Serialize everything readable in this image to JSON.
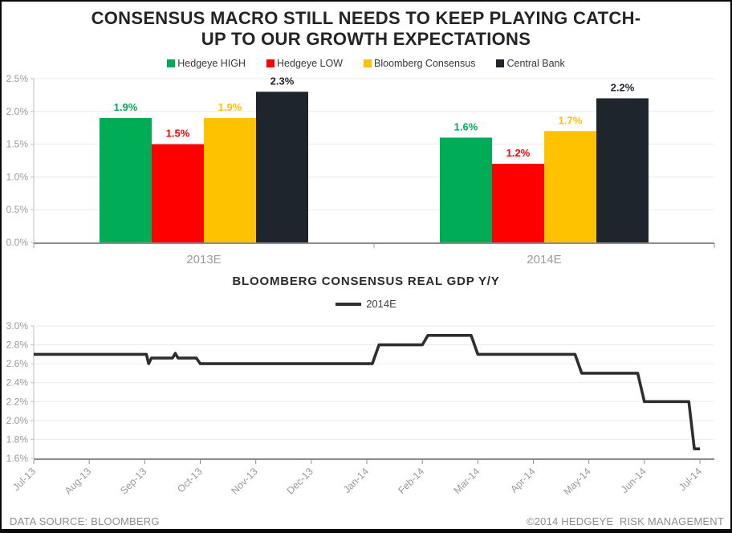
{
  "title": {
    "line1": "CONSENSUS MACRO STILL NEEDS TO KEEP PLAYING CATCH-",
    "line2": "UP TO OUR GROWTH EXPECTATIONS"
  },
  "footer": {
    "left": "DATA SOURCE: BLOOMBERG",
    "right": "©2014 HEDGEYE  RISK MANAGEMENT"
  },
  "chart_data": [
    {
      "type": "bar",
      "categories": [
        "2013E",
        "2014E"
      ],
      "series": [
        {
          "name": "Hedgeye HIGH",
          "color": "#00AC55",
          "values": [
            1.9,
            1.6
          ]
        },
        {
          "name": "Hedgeye LOW",
          "color": "#FE0000",
          "values": [
            1.5,
            1.2
          ]
        },
        {
          "name": "Bloomberg Consensus",
          "color": "#FFC200",
          "values": [
            1.9,
            1.7
          ]
        },
        {
          "name": "Central Bank",
          "color": "#1E252D",
          "values": [
            2.3,
            2.2
          ]
        }
      ],
      "ylim": [
        0.0,
        2.5
      ],
      "ytick_step": 0.5,
      "tick_suffix": "%",
      "grid": true,
      "legend_position": "top",
      "data_labels": true
    },
    {
      "type": "line",
      "title": "BLOOMBERG CONSENSUS REAL GDP Y/Y",
      "legend": "2014E",
      "legend_position": "top",
      "line_color": "#2E2E2E",
      "x_tick_labels": [
        "Jul-13",
        "Aug-13",
        "Sep-13",
        "Oct-13",
        "Nov-13",
        "Dec-13",
        "Jan-14",
        "Feb-14",
        "Mar-14",
        "Apr-14",
        "May-14",
        "Jun-14",
        "Jul-14"
      ],
      "ylim": [
        1.6,
        3.0
      ],
      "ytick_step": 0.2,
      "tick_suffix": "%",
      "grid": true,
      "points": [
        [
          0.0,
          2.7
        ],
        [
          2.03,
          2.7
        ],
        [
          2.07,
          2.6
        ],
        [
          2.12,
          2.66
        ],
        [
          2.5,
          2.66
        ],
        [
          2.55,
          2.71
        ],
        [
          2.6,
          2.66
        ],
        [
          2.93,
          2.66
        ],
        [
          3.0,
          2.6
        ],
        [
          6.1,
          2.6
        ],
        [
          6.22,
          2.8
        ],
        [
          7.0,
          2.8
        ],
        [
          7.1,
          2.9
        ],
        [
          7.88,
          2.9
        ],
        [
          8.0,
          2.7
        ],
        [
          9.75,
          2.7
        ],
        [
          9.87,
          2.5
        ],
        [
          10.88,
          2.5
        ],
        [
          11.0,
          2.2
        ],
        [
          11.8,
          2.2
        ],
        [
          11.9,
          1.7
        ],
        [
          12.0,
          1.7
        ]
      ]
    }
  ]
}
